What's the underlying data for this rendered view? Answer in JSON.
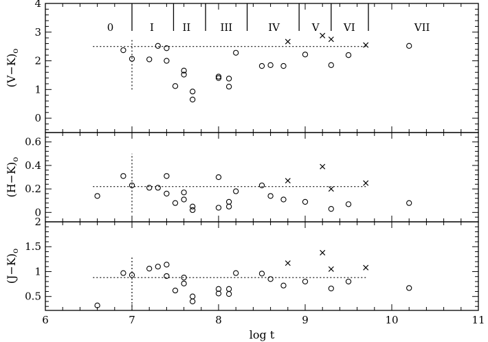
{
  "chart_data": {
    "type": "scatter",
    "xlabel": "log t",
    "xlim": [
      6,
      11
    ],
    "x_ticks": [
      6,
      7,
      8,
      9,
      10,
      11
    ],
    "regions": [
      {
        "label": "0",
        "x_center": 6.75
      },
      {
        "label": "I",
        "x_center": 7.23
      },
      {
        "label": "II",
        "x_center": 7.63
      },
      {
        "label": "III",
        "x_center": 8.09
      },
      {
        "label": "IV",
        "x_center": 8.64
      },
      {
        "label": "V",
        "x_center": 9.12
      },
      {
        "label": "VI",
        "x_center": 9.51
      },
      {
        "label": "VII",
        "x_center": 10.35
      }
    ],
    "region_boundaries": [
      7.0,
      7.48,
      7.85,
      8.33,
      8.93,
      9.3,
      9.73
    ],
    "panels": [
      {
        "ylabel": "(V−K)",
        "ylabel_sub": "o",
        "ylim": [
          -0.5,
          4
        ],
        "y_ticks": [
          0,
          1,
          2,
          3,
          4
        ],
        "y_tick_labels": [
          "0",
          "1",
          "2",
          "3",
          "4"
        ],
        "reference_level": 2.5,
        "reference_xrange": [
          6.55,
          9.7
        ],
        "vertical_marker": {
          "x": 7.0,
          "y_range": [
            1.0,
            2.75
          ]
        },
        "circles": [
          [
            6.9,
            2.37
          ],
          [
            7.0,
            2.07
          ],
          [
            7.2,
            2.05
          ],
          [
            7.3,
            2.52
          ],
          [
            7.4,
            2.44
          ],
          [
            7.4,
            2.0
          ],
          [
            7.5,
            1.12
          ],
          [
            7.6,
            1.66
          ],
          [
            7.6,
            1.52
          ],
          [
            7.7,
            0.93
          ],
          [
            7.7,
            0.65
          ],
          [
            8.0,
            1.45
          ],
          [
            8.0,
            1.4
          ],
          [
            8.12,
            1.38
          ],
          [
            8.12,
            1.1
          ],
          [
            8.2,
            2.28
          ],
          [
            8.5,
            1.82
          ],
          [
            8.6,
            1.85
          ],
          [
            8.75,
            1.82
          ],
          [
            9.0,
            2.22
          ],
          [
            9.3,
            1.85
          ],
          [
            9.5,
            2.2
          ],
          [
            10.2,
            2.52
          ]
        ],
        "crosses": [
          [
            8.8,
            2.67
          ],
          [
            9.2,
            2.88
          ],
          [
            9.3,
            2.75
          ],
          [
            9.7,
            2.55
          ]
        ]
      },
      {
        "ylabel": "(H−K)",
        "ylabel_sub": "o",
        "ylim": [
          -0.08,
          0.68
        ],
        "y_ticks": [
          0,
          0.2,
          0.4,
          0.6
        ],
        "y_tick_labels": [
          "0",
          "0.2",
          "0.4",
          "0.6"
        ],
        "reference_level": 0.22,
        "reference_xrange": [
          6.55,
          9.7
        ],
        "vertical_marker": {
          "x": 7.0,
          "y_range": [
            0.0,
            0.5
          ]
        },
        "circles": [
          [
            6.6,
            0.14
          ],
          [
            6.9,
            0.31
          ],
          [
            7.0,
            0.23
          ],
          [
            7.2,
            0.21
          ],
          [
            7.3,
            0.21
          ],
          [
            7.4,
            0.31
          ],
          [
            7.4,
            0.16
          ],
          [
            7.5,
            0.08
          ],
          [
            7.6,
            0.17
          ],
          [
            7.6,
            0.11
          ],
          [
            7.7,
            0.05
          ],
          [
            7.7,
            0.02
          ],
          [
            8.0,
            0.3
          ],
          [
            8.0,
            0.04
          ],
          [
            8.12,
            0.09
          ],
          [
            8.12,
            0.05
          ],
          [
            8.2,
            0.18
          ],
          [
            8.5,
            0.23
          ],
          [
            8.6,
            0.14
          ],
          [
            8.75,
            0.11
          ],
          [
            9.0,
            0.09
          ],
          [
            9.3,
            0.03
          ],
          [
            9.5,
            0.07
          ],
          [
            10.2,
            0.08
          ]
        ],
        "crosses": [
          [
            8.8,
            0.27
          ],
          [
            9.2,
            0.39
          ],
          [
            9.3,
            0.2
          ],
          [
            9.7,
            0.25
          ]
        ]
      },
      {
        "ylabel": "(J−K)",
        "ylabel_sub": "o",
        "ylim": [
          0.22,
          2.0
        ],
        "y_ticks": [
          0.5,
          1,
          1.5,
          2
        ],
        "y_tick_labels": [
          "0.5",
          "1",
          "1.5",
          "2"
        ],
        "reference_level": 0.88,
        "reference_xrange": [
          6.55,
          9.7
        ],
        "vertical_marker": {
          "x": 7.0,
          "y_range": [
            0.22,
            1.32
          ]
        },
        "circles": [
          [
            6.6,
            0.32
          ],
          [
            6.9,
            0.97
          ],
          [
            7.0,
            0.93
          ],
          [
            7.2,
            1.06
          ],
          [
            7.3,
            1.1
          ],
          [
            7.4,
            1.14
          ],
          [
            7.4,
            0.91
          ],
          [
            7.5,
            0.62
          ],
          [
            7.6,
            0.88
          ],
          [
            7.6,
            0.76
          ],
          [
            7.7,
            0.5
          ],
          [
            7.7,
            0.4
          ],
          [
            8.0,
            0.65
          ],
          [
            8.0,
            0.56
          ],
          [
            8.12,
            0.65
          ],
          [
            8.12,
            0.55
          ],
          [
            8.2,
            0.97
          ],
          [
            8.5,
            0.96
          ],
          [
            8.6,
            0.85
          ],
          [
            8.75,
            0.72
          ],
          [
            9.0,
            0.8
          ],
          [
            9.3,
            0.66
          ],
          [
            9.5,
            0.8
          ],
          [
            10.2,
            0.67
          ]
        ],
        "crosses": [
          [
            8.8,
            1.17
          ],
          [
            9.2,
            1.38
          ],
          [
            9.3,
            1.05
          ],
          [
            9.7,
            1.08
          ]
        ]
      }
    ]
  }
}
